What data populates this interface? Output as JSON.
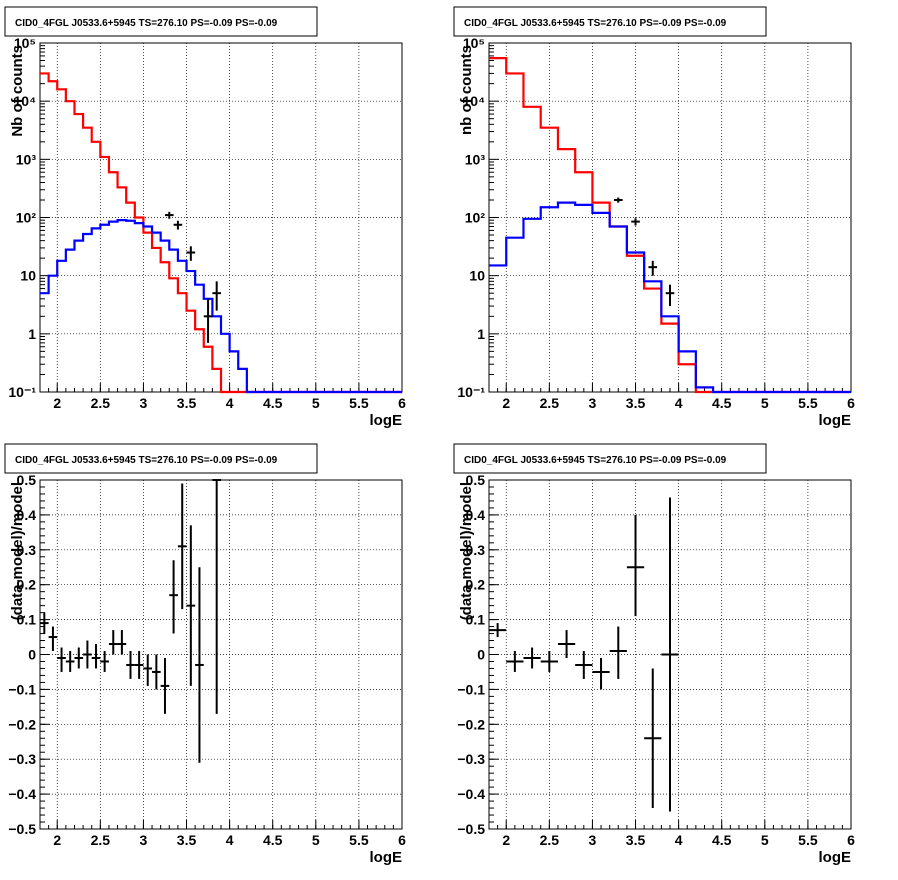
{
  "chart_data": [
    {
      "type": "histogram",
      "title": "CID0_4FGL J0533.6+5945 TS=276.10 PS=-0.09 PS=-0.09",
      "xlabel": "logE",
      "ylabel": "Nb of counts",
      "log_y": true,
      "xlim": [
        1.8,
        6
      ],
      "ylim": [
        0.1,
        100000
      ],
      "grid": true,
      "x_ticks": [
        "2",
        "2.5",
        "3",
        "3.5",
        "4",
        "4.5",
        "5",
        "5.5",
        "6"
      ],
      "y_ticks": [
        "10⁻¹",
        "1",
        "10",
        "10²",
        "10³",
        "10⁴",
        "10⁵"
      ],
      "series": [
        {
          "color": "#ff0000",
          "bin_width": 0.1,
          "bins_start": 1.8,
          "values": [
            30000,
            22000,
            16000,
            10000,
            6000,
            3500,
            2000,
            1100,
            600,
            330,
            180,
            100,
            55,
            30,
            17,
            9,
            5,
            2.5,
            1.2,
            0.6,
            0.25,
            0.1,
            0.1,
            0.1,
            0.1,
            0.1,
            0.1,
            0.1,
            0.1,
            0.1,
            0.1,
            0.1,
            0.1,
            0.1,
            0.1,
            0.1,
            0.1,
            0.1,
            0.1,
            0.1,
            0.1,
            0.1
          ]
        },
        {
          "color": "#0000ff",
          "bin_width": 0.1,
          "bins_start": 1.8,
          "values": [
            5,
            10,
            18,
            28,
            40,
            52,
            65,
            75,
            85,
            90,
            88,
            80,
            70,
            55,
            40,
            28,
            18,
            12,
            7,
            4,
            2,
            1,
            0.5,
            0.25,
            0.1,
            0.1,
            0.1,
            0.1,
            0.1,
            0.1,
            0.1,
            0.1,
            0.1,
            0.1,
            0.1,
            0.1,
            0.1,
            0.1,
            0.1,
            0.1,
            0.1,
            0.1
          ]
        }
      ],
      "points": [
        {
          "x": 3.3,
          "y": 110,
          "lo": 95,
          "hi": 125,
          "xerr": 0.05
        },
        {
          "x": 3.4,
          "y": 75,
          "lo": 62,
          "hi": 88,
          "xerr": 0.05
        },
        {
          "x": 3.55,
          "y": 25,
          "lo": 18,
          "hi": 32,
          "xerr": 0.05
        },
        {
          "x": 3.75,
          "y": 2,
          "lo": 0.7,
          "hi": 4,
          "xerr": 0.05
        },
        {
          "x": 3.85,
          "y": 5,
          "lo": 2.5,
          "hi": 8,
          "xerr": 0.05
        }
      ]
    },
    {
      "type": "histogram",
      "title": "CID0_4FGL J0533.6+5945 TS=276.10 PS=-0.09 PS=-0.09",
      "xlabel": "logE",
      "ylabel": "nb of counts",
      "log_y": true,
      "xlim": [
        1.8,
        6
      ],
      "ylim": [
        0.1,
        100000
      ],
      "grid": true,
      "x_ticks": [
        "2",
        "2.5",
        "3",
        "3.5",
        "4",
        "4.5",
        "5",
        "5.5",
        "6"
      ],
      "y_ticks": [
        "10⁻¹",
        "1",
        "10",
        "10²",
        "10³",
        "10⁴",
        "10⁵"
      ],
      "series": [
        {
          "color": "#ff0000",
          "bin_width": 0.2,
          "bins_start": 1.8,
          "values": [
            55000,
            30000,
            8000,
            3500,
            1500,
            600,
            180,
            70,
            22,
            6,
            1.5,
            0.3,
            0.1,
            0.1,
            0.1,
            0.1,
            0.1,
            0.1,
            0.1,
            0.1,
            0.1
          ]
        },
        {
          "color": "#0000ff",
          "bin_width": 0.2,
          "bins_start": 1.8,
          "values": [
            15,
            45,
            95,
            150,
            180,
            165,
            120,
            70,
            25,
            8,
            2,
            0.5,
            0.12,
            0.1,
            0.1,
            0.1,
            0.1,
            0.1,
            0.1,
            0.1,
            0.1
          ]
        }
      ],
      "points": [
        {
          "x": 3.3,
          "y": 200,
          "lo": 180,
          "hi": 220,
          "xerr": 0.05
        },
        {
          "x": 3.5,
          "y": 85,
          "lo": 73,
          "hi": 97,
          "xerr": 0.05
        },
        {
          "x": 3.7,
          "y": 14,
          "lo": 10,
          "hi": 18,
          "xerr": 0.05
        },
        {
          "x": 3.9,
          "y": 5,
          "lo": 3,
          "hi": 7,
          "xerr": 0.05
        }
      ]
    },
    {
      "type": "scatter",
      "title": "CID0_4FGL J0533.6+5945 TS=276.10 PS=-0.09 PS=-0.09",
      "xlabel": "logE",
      "ylabel": "(data-model)/model",
      "log_y": false,
      "xlim": [
        1.8,
        6
      ],
      "ylim": [
        -0.5,
        0.5
      ],
      "grid": true,
      "x_ticks": [
        "2",
        "2.5",
        "3",
        "3.5",
        "4",
        "4.5",
        "5",
        "5.5",
        "6"
      ],
      "y_ticks": [
        "−0.5",
        "−0.4",
        "−0.3",
        "−0.2",
        "−0.1",
        "0",
        "0.1",
        "0.2",
        "0.3",
        "0.4",
        "0.5"
      ],
      "points": [
        {
          "x": 1.85,
          "y": 0.09,
          "lo": 0.06,
          "hi": 0.12,
          "xerr": 0.05
        },
        {
          "x": 1.95,
          "y": 0.05,
          "lo": 0.01,
          "hi": 0.08,
          "xerr": 0.05
        },
        {
          "x": 2.05,
          "y": -0.01,
          "lo": -0.05,
          "hi": 0.02,
          "xerr": 0.05
        },
        {
          "x": 2.15,
          "y": -0.02,
          "lo": -0.05,
          "hi": 0.01,
          "xerr": 0.05
        },
        {
          "x": 2.25,
          "y": -0.01,
          "lo": -0.04,
          "hi": 0.02,
          "xerr": 0.05
        },
        {
          "x": 2.35,
          "y": 0.0,
          "lo": -0.04,
          "hi": 0.04,
          "xerr": 0.05
        },
        {
          "x": 2.45,
          "y": -0.01,
          "lo": -0.04,
          "hi": 0.03,
          "xerr": 0.05
        },
        {
          "x": 2.55,
          "y": -0.02,
          "lo": -0.05,
          "hi": 0.01,
          "xerr": 0.05
        },
        {
          "x": 2.65,
          "y": 0.03,
          "lo": 0.0,
          "hi": 0.07,
          "xerr": 0.05
        },
        {
          "x": 2.75,
          "y": 0.03,
          "lo": 0.0,
          "hi": 0.07,
          "xerr": 0.05
        },
        {
          "x": 2.85,
          "y": -0.03,
          "lo": -0.07,
          "hi": 0.01,
          "xerr": 0.05
        },
        {
          "x": 2.95,
          "y": -0.03,
          "lo": -0.07,
          "hi": 0.01,
          "xerr": 0.05
        },
        {
          "x": 3.05,
          "y": -0.04,
          "lo": -0.09,
          "hi": 0.0,
          "xerr": 0.05
        },
        {
          "x": 3.15,
          "y": -0.05,
          "lo": -0.1,
          "hi": 0.0,
          "xerr": 0.05
        },
        {
          "x": 3.25,
          "y": -0.09,
          "lo": -0.17,
          "hi": -0.01,
          "xerr": 0.05
        },
        {
          "x": 3.35,
          "y": 0.17,
          "lo": 0.06,
          "hi": 0.27,
          "xerr": 0.05
        },
        {
          "x": 3.45,
          "y": 0.31,
          "lo": 0.13,
          "hi": 0.49,
          "xerr": 0.05
        },
        {
          "x": 3.55,
          "y": 0.14,
          "lo": -0.09,
          "hi": 0.37,
          "xerr": 0.05
        },
        {
          "x": 3.65,
          "y": -0.03,
          "lo": -0.31,
          "hi": 0.25,
          "xerr": 0.05
        },
        {
          "x": 3.85,
          "y": 0.5,
          "lo": -0.17,
          "hi": 0.5,
          "xerr": 0.05
        }
      ]
    },
    {
      "type": "scatter",
      "title": "CID0_4FGL J0533.6+5945 TS=276.10 PS=-0.09 PS=-0.09",
      "xlabel": "logE",
      "ylabel": "(data-model)/model",
      "log_y": false,
      "xlim": [
        1.8,
        6
      ],
      "ylim": [
        -0.5,
        0.5
      ],
      "grid": true,
      "x_ticks": [
        "2",
        "2.5",
        "3",
        "3.5",
        "4",
        "4.5",
        "5",
        "5.5",
        "6"
      ],
      "y_ticks": [
        "−0.5",
        "−0.4",
        "−0.3",
        "−0.2",
        "−0.1",
        "0",
        "0.1",
        "0.2",
        "0.3",
        "0.4",
        "0.5"
      ],
      "points": [
        {
          "x": 1.9,
          "y": 0.07,
          "lo": 0.05,
          "hi": 0.09,
          "xerr": 0.1
        },
        {
          "x": 2.1,
          "y": -0.02,
          "lo": -0.05,
          "hi": 0.01,
          "xerr": 0.1
        },
        {
          "x": 2.3,
          "y": -0.01,
          "lo": -0.04,
          "hi": 0.02,
          "xerr": 0.1
        },
        {
          "x": 2.5,
          "y": -0.02,
          "lo": -0.05,
          "hi": 0.01,
          "xerr": 0.1
        },
        {
          "x": 2.7,
          "y": 0.03,
          "lo": -0.01,
          "hi": 0.07,
          "xerr": 0.1
        },
        {
          "x": 2.9,
          "y": -0.03,
          "lo": -0.07,
          "hi": 0.01,
          "xerr": 0.1
        },
        {
          "x": 3.1,
          "y": -0.05,
          "lo": -0.1,
          "hi": -0.01,
          "xerr": 0.1
        },
        {
          "x": 3.3,
          "y": 0.01,
          "lo": -0.07,
          "hi": 0.08,
          "xerr": 0.1
        },
        {
          "x": 3.5,
          "y": 0.25,
          "lo": 0.11,
          "hi": 0.4,
          "xerr": 0.1
        },
        {
          "x": 3.7,
          "y": -0.24,
          "lo": -0.44,
          "hi": -0.04,
          "xerr": 0.1
        },
        {
          "x": 3.9,
          "y": 0.0,
          "lo": -0.45,
          "hi": 0.45,
          "xerr": 0.1
        }
      ]
    }
  ]
}
